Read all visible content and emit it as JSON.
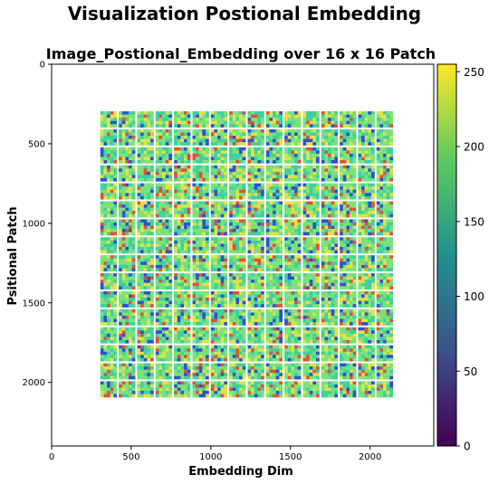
{
  "figure": {
    "suptitle": "Visualization Postional Embedding"
  },
  "chart_data": {
    "type": "heatmap",
    "title": "Image_Postional_Embedding over 16 x 16 Patch",
    "xlabel": "Embedding Dim",
    "ylabel": "Psitional Patch",
    "xlim": [
      0,
      2400
    ],
    "ylim": [
      2400,
      0
    ],
    "x_ticks": [
      0,
      500,
      1000,
      1500,
      2000
    ],
    "y_ticks": [
      0,
      500,
      1000,
      1500,
      2000
    ],
    "grid": false,
    "patch_grid": {
      "rows": 16,
      "cols": 16,
      "x_start": 300,
      "x_end": 2150,
      "y_start": 290,
      "y_end": 2100
    },
    "colorbar": {
      "colormap": "viridis",
      "range": [
        0,
        255
      ],
      "ticks": [
        0,
        50,
        100,
        150,
        200,
        250
      ]
    },
    "colors": {
      "viridis": [
        "#440154",
        "#3b528b",
        "#21918c",
        "#5ec962",
        "#fde725"
      ],
      "patch_low": "#2f4fd0",
      "patch_mid": "#3fd0a0",
      "patch_base": "#7be27a",
      "patch_high": "#e0e24a",
      "patch_hot": "#e0503a"
    }
  }
}
